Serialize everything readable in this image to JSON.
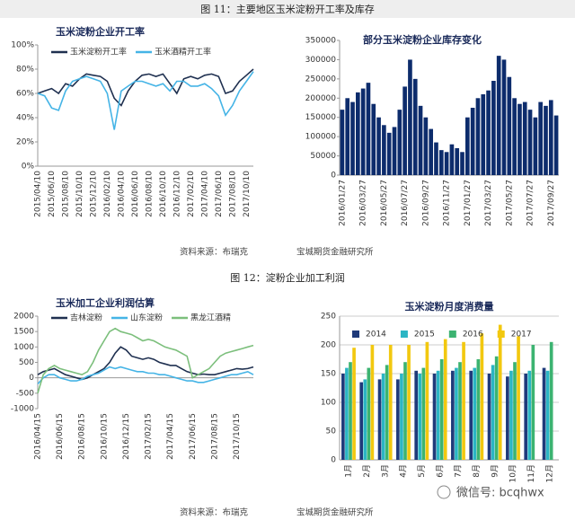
{
  "figure_captions": [
    "图 11：主要地区玉米淀粉开工率及库存",
    "图 12：淀粉企业加工利润"
  ],
  "sources": [
    [
      "资料来源：布瑞克",
      "宝城期货金融研究所"
    ],
    [
      "资料来源：布瑞克",
      "宝城期货金融研究所"
    ]
  ],
  "watermark": "微信号: bcqhwx",
  "chart_data": [
    {
      "type": "line",
      "title": "玉米淀粉企业开工率",
      "legend": "top",
      "categories": [
        "2015/04/10",
        null,
        "2015/06/10",
        null,
        "2015/08/10",
        null,
        "2015/10/10",
        null,
        "2015/12/10",
        null,
        "2016/02/10",
        null,
        "2016/04/10",
        null,
        "2016/06/10",
        null,
        "2016/08/10",
        null,
        "2016/10/10",
        null,
        "2016/12/10",
        null,
        "2017/02/10",
        null,
        "2017/04/10",
        null,
        "2017/06/10",
        null,
        "2017/08/10",
        null,
        "2017/10/10",
        null
      ],
      "series": [
        {
          "name": "玉米淀粉开工率",
          "color": "#1f3050",
          "values": [
            60,
            62,
            64,
            60,
            68,
            66,
            72,
            76,
            75,
            74,
            70,
            56,
            50,
            62,
            70,
            75,
            76,
            74,
            76,
            68,
            60,
            72,
            74,
            72,
            75,
            76,
            74,
            60,
            62,
            70,
            75,
            80
          ]
        },
        {
          "name": "玉米酒精开工率",
          "color": "#45b4e6",
          "values": [
            60,
            58,
            48,
            46,
            62,
            70,
            72,
            74,
            72,
            70,
            60,
            30,
            62,
            66,
            70,
            70,
            68,
            66,
            68,
            62,
            70,
            70,
            66,
            66,
            68,
            64,
            58,
            42,
            50,
            62,
            70,
            78
          ]
        }
      ],
      "ylim": [
        0,
        100
      ],
      "yticks": [
        {
          "value": 0,
          "label": "0%"
        },
        {
          "value": 20,
          "label": "20%"
        },
        {
          "value": 40,
          "label": "40%"
        },
        {
          "value": 60,
          "label": "60%"
        },
        {
          "value": 80,
          "label": "80%"
        },
        {
          "value": 100,
          "label": "100%"
        }
      ]
    },
    {
      "type": "bar",
      "title": "部分玉米淀粉企业库存变化",
      "color": "#0d2c6c",
      "categories": [
        "2016/01/27",
        null,
        null,
        null,
        "2016/03/27",
        null,
        null,
        null,
        "2016/05/27",
        null,
        null,
        null,
        "2016/07/27",
        null,
        null,
        null,
        "2016/09/27",
        null,
        null,
        null,
        "2016/11/27",
        null,
        null,
        null,
        "2017/01/27",
        null,
        null,
        null,
        "2017/03/27",
        null,
        null,
        null,
        "2017/05/27",
        null,
        null,
        null,
        "2017/07/27",
        null,
        null,
        null,
        "2017/09/27",
        null
      ],
      "values": [
        170000,
        200000,
        190000,
        215000,
        225000,
        240000,
        185000,
        150000,
        130000,
        110000,
        125000,
        170000,
        230000,
        300000,
        250000,
        180000,
        150000,
        120000,
        85000,
        65000,
        60000,
        80000,
        70000,
        60000,
        150000,
        175000,
        200000,
        210000,
        220000,
        245000,
        310000,
        300000,
        255000,
        200000,
        185000,
        190000,
        170000,
        150000,
        190000,
        180000,
        195000,
        155000
      ],
      "ylim": [
        0,
        350000
      ],
      "yticks": [
        0,
        50000,
        100000,
        150000,
        200000,
        250000,
        300000,
        350000
      ]
    },
    {
      "type": "line",
      "title": "玉米加工企业利润估算",
      "legend": "top",
      "categories": [
        "2016/04/15",
        null,
        null,
        null,
        "2016/06/15",
        null,
        null,
        null,
        "2016/08/15",
        null,
        null,
        null,
        "2016/10/15",
        null,
        null,
        null,
        "2016/12/15",
        null,
        null,
        null,
        "2017/02/15",
        null,
        null,
        null,
        "2017/04/15",
        null,
        null,
        null,
        "2017/06/15",
        null,
        null,
        null,
        "2017/08/15",
        null,
        null,
        null,
        "2017/10/15",
        null,
        null,
        null
      ],
      "series": [
        {
          "name": "吉林淀粉",
          "color": "#1f3050",
          "values": [
            100,
            200,
            250,
            300,
            200,
            100,
            50,
            0,
            -50,
            0,
            100,
            200,
            300,
            500,
            800,
            1000,
            900,
            700,
            650,
            600,
            650,
            600,
            500,
            450,
            400,
            400,
            300,
            200,
            150,
            100,
            120,
            100,
            100,
            150,
            200,
            250,
            300,
            280,
            300,
            350
          ]
        },
        {
          "name": "山东淀粉",
          "color": "#45b4e6",
          "values": [
            -200,
            0,
            100,
            100,
            0,
            -50,
            -100,
            -100,
            -50,
            50,
            100,
            150,
            250,
            350,
            300,
            350,
            300,
            250,
            200,
            200,
            150,
            150,
            100,
            100,
            50,
            0,
            -50,
            -100,
            -100,
            -150,
            -150,
            -100,
            -50,
            0,
            50,
            100,
            100,
            150,
            200,
            100
          ]
        },
        {
          "name": "黑龙江酒精",
          "color": "#7cbf7c",
          "values": [
            -500,
            100,
            300,
            400,
            300,
            250,
            200,
            150,
            100,
            200,
            500,
            900,
            1200,
            1500,
            1600,
            1500,
            1450,
            1400,
            1300,
            1200,
            1250,
            1200,
            1100,
            1000,
            950,
            900,
            800,
            700,
            0,
            100,
            200,
            300,
            500,
            700,
            800,
            850,
            900,
            950,
            1000,
            1050
          ]
        }
      ],
      "ylim": [
        -1000,
        2000
      ],
      "yticks": [
        -1000,
        -500,
        0,
        500,
        1000,
        1500,
        2000
      ]
    },
    {
      "type": "bar",
      "title": "玉米淀粉月度消费量",
      "legend": "upper left",
      "grid": true,
      "categories": [
        "1月",
        "2月",
        "3月",
        "4月",
        "5月",
        "6月",
        "7月",
        "8月",
        "9月",
        "10月",
        "11月",
        "12月"
      ],
      "series": [
        {
          "name": "2014",
          "color": "#1f3a7a",
          "values": [
            150,
            135,
            140,
            140,
            155,
            150,
            155,
            155,
            150,
            145,
            150,
            160
          ]
        },
        {
          "name": "2015",
          "color": "#2bb5c4",
          "values": [
            160,
            140,
            150,
            150,
            150,
            155,
            160,
            160,
            165,
            155,
            155,
            155
          ]
        },
        {
          "name": "2016",
          "color": "#3cb371",
          "values": [
            170,
            160,
            165,
            170,
            160,
            175,
            170,
            175,
            180,
            170,
            200,
            205
          ]
        },
        {
          "name": "2017",
          "color": "#f2c80f",
          "values": [
            195,
            200,
            200,
            200,
            205,
            210,
            205,
            220,
            235,
            215,
            null,
            null
          ]
        }
      ],
      "ylim": [
        0,
        250
      ],
      "yticks": [
        0,
        50,
        100,
        150,
        200,
        250
      ]
    }
  ]
}
